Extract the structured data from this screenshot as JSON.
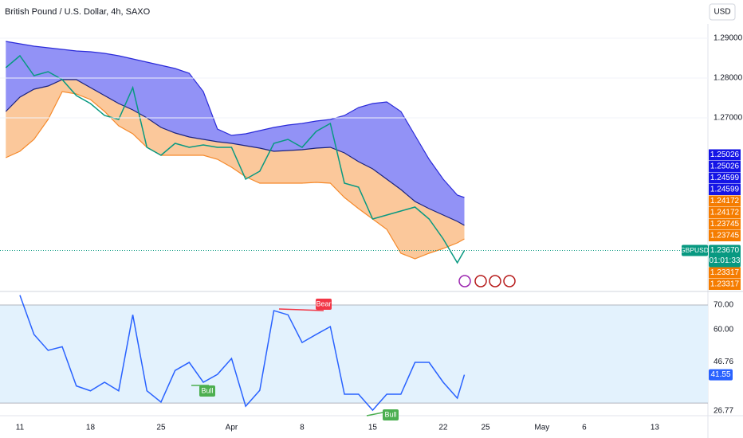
{
  "header": {
    "title": "British Pound / U.S. Dollar, 4h, SAXO",
    "currency": "USD"
  },
  "chart_data": [
    {
      "type": "line",
      "x": [
        -1,
        0,
        1,
        2,
        3,
        4,
        5,
        6,
        7,
        8,
        9,
        10,
        11,
        12,
        13,
        14,
        15,
        16,
        17,
        18,
        19,
        20,
        21,
        22,
        23,
        24,
        25,
        26,
        27,
        28,
        29,
        30,
        31,
        31.5
      ],
      "xlim": [
        -1.41,
        48.76
      ],
      "ylim": [
        1.2266,
        1.2956
      ],
      "yticks": [
        {
          "value": 1.29,
          "label": "1.29000"
        },
        {
          "value": 1.28,
          "label": "1.28000"
        },
        {
          "value": 1.27,
          "label": "1.27000"
        }
      ],
      "grid": true,
      "series": [
        {
          "color": "#2b2bd9",
          "fill": "#6e6ef3",
          "values": [
            1.2892,
            1.2886,
            1.288,
            1.2876,
            1.2872,
            1.2868,
            1.2866,
            1.2862,
            1.2856,
            1.2848,
            1.284,
            1.2832,
            1.2824,
            1.2812,
            1.2766,
            1.2672,
            1.2656,
            1.266,
            1.2668,
            1.2676,
            1.2682,
            1.2686,
            1.2692,
            1.2696,
            1.2706,
            1.2726,
            1.2736,
            1.274,
            1.2716,
            1.2656,
            1.2596,
            1.2546,
            1.2506,
            1.25
          ]
        },
        {
          "color": "#1a237e",
          "fill": "#f9b67a",
          "values": [
            1.2716,
            1.2752,
            1.2772,
            1.278,
            1.2796,
            1.2796,
            1.2776,
            1.2756,
            1.2736,
            1.272,
            1.27,
            1.2676,
            1.2662,
            1.2652,
            1.2646,
            1.264,
            1.2636,
            1.263,
            1.2624,
            1.2616,
            1.2618,
            1.262,
            1.2624,
            1.2626,
            1.2612,
            1.259,
            1.2572,
            1.2546,
            1.252,
            1.249,
            1.2472,
            1.2456,
            1.244,
            1.243
          ]
        },
        {
          "color": "#f5892a",
          "values": [
            1.26,
            1.2616,
            1.2646,
            1.2696,
            1.2766,
            1.276,
            1.2746,
            1.2716,
            1.268,
            1.266,
            1.2626,
            1.2606,
            1.2606,
            1.2606,
            1.2606,
            1.2596,
            1.2576,
            1.2552,
            1.2536,
            1.2536,
            1.2536,
            1.2536,
            1.2538,
            1.2536,
            1.25,
            1.2472,
            1.2446,
            1.242,
            1.236,
            1.2346,
            1.236,
            1.2372,
            1.2386,
            1.2396
          ]
        },
        {
          "name": "GBPUSD",
          "color": "#089981",
          "values": [
            1.2826,
            1.2856,
            1.2806,
            1.2816,
            1.2796,
            1.2756,
            1.2736,
            1.2706,
            1.2696,
            1.2776,
            1.2626,
            1.2606,
            1.2636,
            1.2626,
            1.2632,
            1.2626,
            1.2626,
            1.2546,
            1.2566,
            1.2636,
            1.2646,
            1.2626,
            1.2666,
            1.2686,
            1.2536,
            1.2526,
            1.2446,
            1.2456,
            1.2466,
            1.2476,
            1.2446,
            1.2396,
            1.2336,
            1.2367
          ]
        }
      ],
      "last": {
        "value": 1.2367,
        "label": "1.23670",
        "countdown": "01:01:33"
      },
      "price_labels": [
        {
          "value": 1.25026,
          "label": "1.25026",
          "color": "#1414e6"
        },
        {
          "value": 1.25026,
          "label": "1.25026",
          "color": "#1414e6"
        },
        {
          "value": 1.24599,
          "label": "1.24599",
          "color": "#1414e6"
        },
        {
          "value": 1.24599,
          "label": "1.24599",
          "color": "#1414e6"
        },
        {
          "value": 1.24172,
          "label": "1.24172",
          "color": "#f57c00"
        },
        {
          "value": 1.24172,
          "label": "1.24172",
          "color": "#f57c00"
        },
        {
          "value": 1.23745,
          "label": "1.23745",
          "color": "#f57c00"
        },
        {
          "value": 1.23745,
          "label": "1.23745",
          "color": "#f57c00"
        },
        {
          "value": 1.23317,
          "label": "1.23317",
          "color": "#f57c00"
        },
        {
          "value": 1.23317,
          "label": "1.23317",
          "color": "#f57c00"
        }
      ]
    },
    {
      "type": "line",
      "x": [
        -1,
        0,
        1,
        2,
        3,
        4,
        5,
        6,
        7,
        8,
        9,
        10,
        11,
        12,
        13,
        14,
        15,
        16,
        17,
        18,
        19,
        20,
        21,
        22,
        23,
        24,
        25,
        26,
        27,
        28,
        29,
        30,
        31,
        31.5
      ],
      "xlim": [
        -1.41,
        48.76
      ],
      "xticks": [
        {
          "value": 0,
          "label": "11"
        },
        {
          "value": 5,
          "label": "18"
        },
        {
          "value": 10,
          "label": "25"
        },
        {
          "value": 15,
          "label": "Apr"
        },
        {
          "value": 20,
          "label": "8"
        },
        {
          "value": 25,
          "label": "15"
        },
        {
          "value": 30,
          "label": "22"
        },
        {
          "value": 33,
          "label": "25"
        },
        {
          "value": 37,
          "label": "May"
        },
        {
          "value": 40,
          "label": "6"
        },
        {
          "value": 45,
          "label": "13"
        }
      ],
      "ylim": [
        25.5,
        75.2
      ],
      "yticks": [
        {
          "value": 70,
          "label": "70.00"
        },
        {
          "value": 60,
          "label": "60.00"
        },
        {
          "value": 46.76,
          "label": "46.76"
        },
        {
          "value": 26.77,
          "label": "26.77"
        }
      ],
      "band": [
        30,
        70
      ],
      "band_color": "#e3f2fd",
      "series": [
        {
          "color": "#2962ff",
          "values": [
            null,
            74,
            58,
            51.5,
            53,
            37,
            35,
            38.5,
            35,
            66,
            35,
            30.4,
            43.3,
            46.6,
            38.5,
            41.7,
            48.2,
            28.7,
            35.2,
            67.7,
            66,
            54.7,
            58,
            61.2,
            33.6,
            33.6,
            27.1,
            33.6,
            33.6,
            46.6,
            46.6,
            38.5,
            32,
            41.55
          ]
        }
      ],
      "last": {
        "value": 41.55,
        "label": "41.55"
      },
      "annotations": [
        {
          "label": "Bull",
          "color": "#4caf50"
        },
        {
          "label": "Bear",
          "color": "#f23645"
        },
        {
          "label": "Bull",
          "color": "#4caf50"
        }
      ]
    }
  ]
}
